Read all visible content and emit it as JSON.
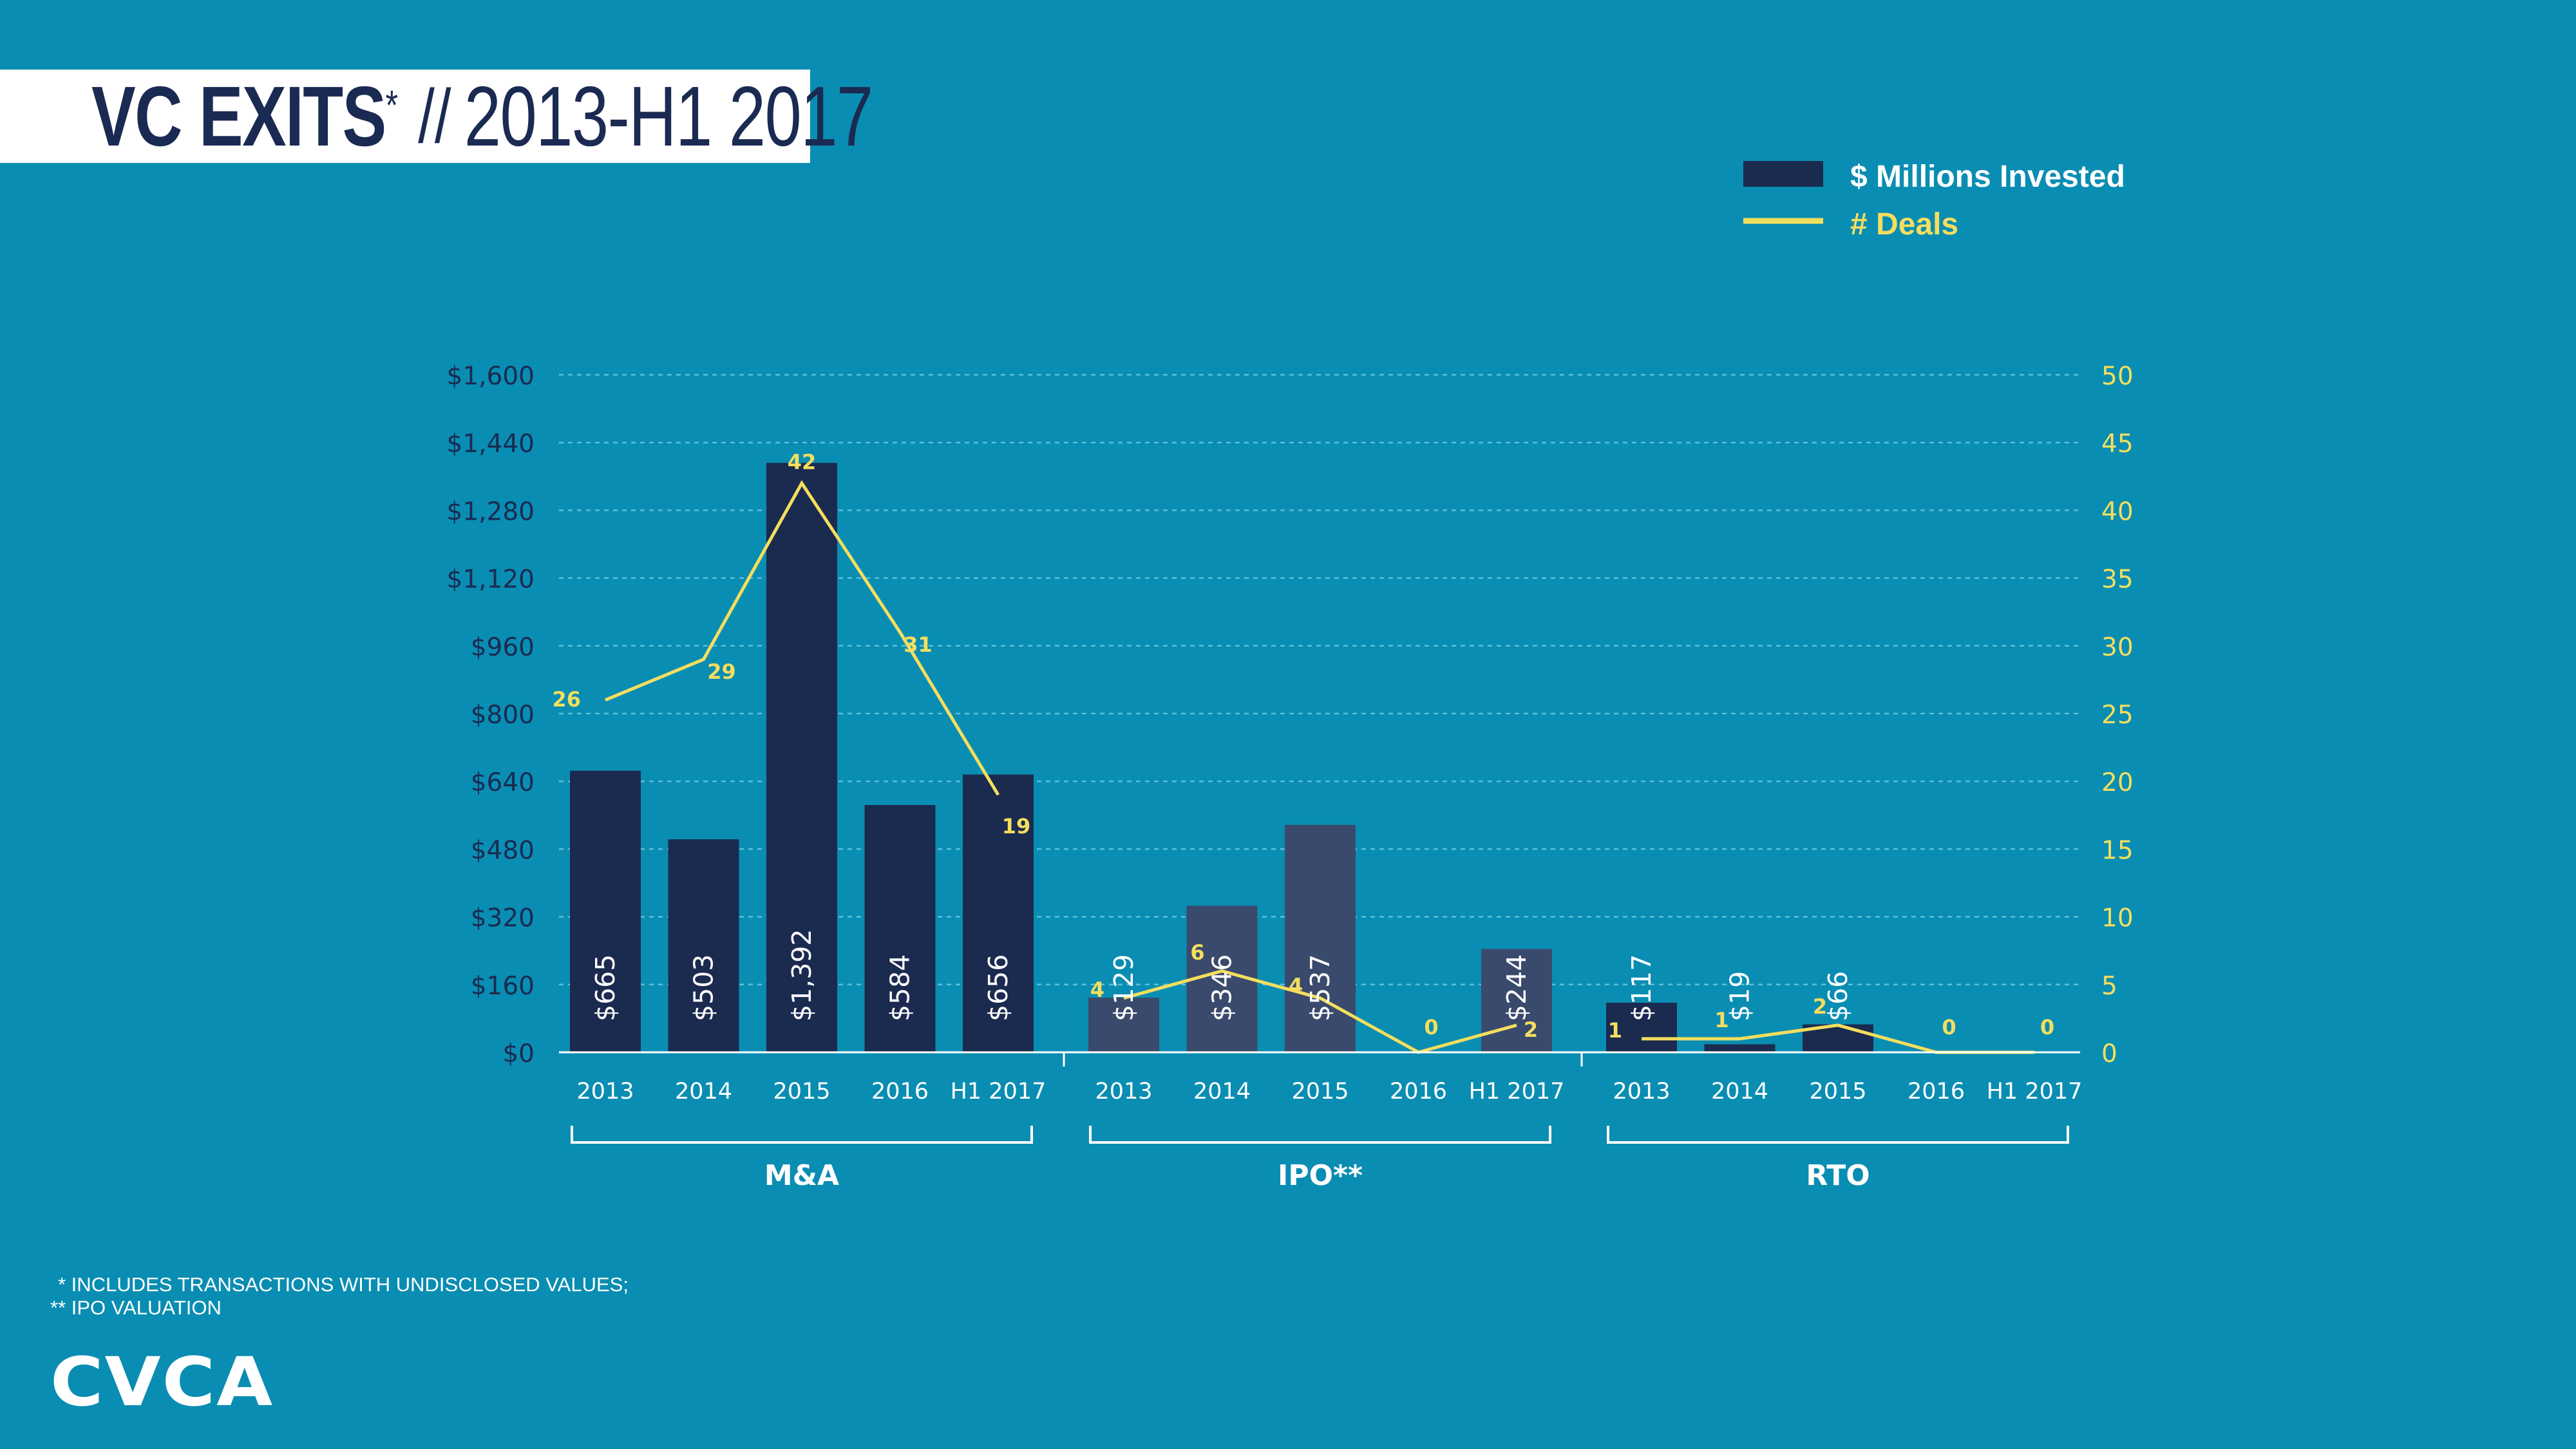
{
  "title": {
    "main": "VC EXITS",
    "main_mark": "*",
    "separator": "//",
    "range": "2013-H1 2017"
  },
  "legend": {
    "bars_label": "$ Millions Invested",
    "line_label": "# Deals"
  },
  "footnotes": [
    "* INCLUDES TRANSACTIONS WITH UNDISCLOSED VALUES;",
    "** IPO VALUATION"
  ],
  "logo": "CVCA",
  "colors": {
    "background": "#0a8db2",
    "bar_dark": "#1b2a4f",
    "bar_ipo": "#3a4a6c",
    "line": "#f4de5e",
    "axis_text": "#1a2a52",
    "right_axis_text": "#f4de5e",
    "white": "#ffffff"
  },
  "chart_data": {
    "type": "bar",
    "combo": "bar + line (dual axis)",
    "categories": [
      "2013",
      "2014",
      "2015",
      "2016",
      "H1 2017"
    ],
    "groups": [
      {
        "name": "M&A",
        "invested": [
          665,
          503,
          1392,
          584,
          656
        ],
        "invested_labels": [
          "$665",
          "$503",
          "$1,392",
          "$584",
          "$656"
        ],
        "deals": [
          26,
          29,
          42,
          31,
          19
        ]
      },
      {
        "name": "IPO**",
        "invested": [
          129,
          346,
          537,
          0,
          244
        ],
        "invested_labels": [
          "$129",
          "$346",
          "$537",
          "",
          "$244"
        ],
        "deals": [
          4,
          6,
          4,
          0,
          2
        ]
      },
      {
        "name": "RTO",
        "invested": [
          117,
          19,
          66,
          0,
          0
        ],
        "invested_labels": [
          "$117",
          "$19",
          "$66",
          "",
          ""
        ],
        "deals": [
          1,
          1,
          2,
          0,
          0
        ]
      }
    ],
    "series": [
      {
        "name": "$ Millions Invested",
        "axis": "left"
      },
      {
        "name": "# Deals",
        "axis": "right"
      }
    ],
    "left_axis": {
      "ticks": [
        "$0",
        "$160",
        "$320",
        "$480",
        "$640",
        "$800",
        "$960",
        "$1,120",
        "$1,280",
        "$1,440",
        "$1,600"
      ],
      "ylim": [
        0,
        1600
      ]
    },
    "right_axis": {
      "ticks": [
        "0",
        "5",
        "10",
        "15",
        "20",
        "25",
        "30",
        "35",
        "40",
        "45",
        "50"
      ],
      "ylim": [
        0,
        50
      ]
    },
    "grid": true,
    "legend_position": "top-right"
  }
}
